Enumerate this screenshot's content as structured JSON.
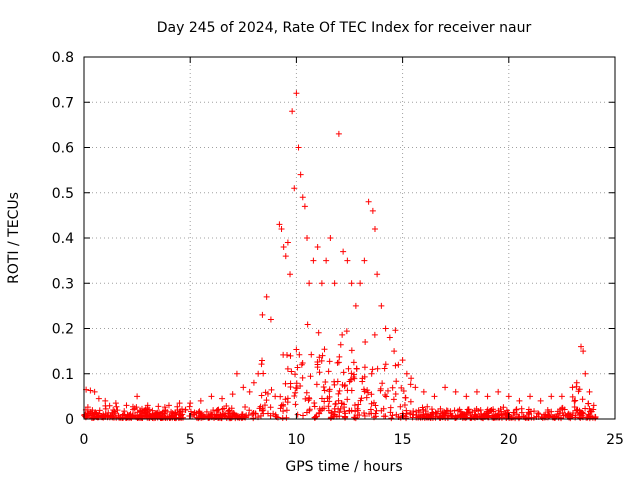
{
  "chart_data": {
    "type": "scatter",
    "title": "Day 245 of 2024, Rate Of TEC Index for receiver naur",
    "xlabel": "GPS time / hours",
    "ylabel": "ROTI / TECUs",
    "xlim": [
      0,
      25
    ],
    "ylim": [
      0,
      0.8
    ],
    "xticks": [
      0,
      5,
      10,
      15,
      20,
      25
    ],
    "yticks": [
      0,
      0.1,
      0.2,
      0.3,
      0.4,
      0.5,
      0.6,
      0.7,
      0.8
    ],
    "grid": true,
    "marker": "+",
    "color": "#ff0000",
    "series": [
      {
        "name": "ROTI",
        "x": [
          0.1,
          0.3,
          0.5,
          0.7,
          1.0,
          1.5,
          2.0,
          2.5,
          3.0,
          3.5,
          4.0,
          4.5,
          5.0,
          5.5,
          6.0,
          6.5,
          7.0,
          7.2,
          7.5,
          7.8,
          8.0,
          8.2,
          8.4,
          8.6,
          8.8,
          9.0,
          9.2,
          9.3,
          9.4,
          9.5,
          9.6,
          9.7,
          9.8,
          9.9,
          10.0,
          10.1,
          10.2,
          10.3,
          10.4,
          10.5,
          10.6,
          10.8,
          11.0,
          11.2,
          11.4,
          11.6,
          11.8,
          12.0,
          12.2,
          12.4,
          12.6,
          12.8,
          13.0,
          13.2,
          13.4,
          13.6,
          13.7,
          13.8,
          14.0,
          14.2,
          14.4,
          14.6,
          14.8,
          15.0,
          15.2,
          15.4,
          15.6,
          16.0,
          16.5,
          17.0,
          17.5,
          18.0,
          18.5,
          19.0,
          19.5,
          20.0,
          20.5,
          21.0,
          21.5,
          22.0,
          22.5,
          23.0,
          23.2,
          23.4,
          23.5,
          23.6,
          23.8,
          24.0
        ],
        "y": [
          0.065,
          0.063,
          0.06,
          0.045,
          0.04,
          0.035,
          0.03,
          0.05,
          0.03,
          0.028,
          0.03,
          0.035,
          0.035,
          0.04,
          0.05,
          0.045,
          0.055,
          0.1,
          0.07,
          0.06,
          0.08,
          0.1,
          0.23,
          0.27,
          0.22,
          0.05,
          0.43,
          0.42,
          0.38,
          0.36,
          0.39,
          0.32,
          0.68,
          0.51,
          0.72,
          0.6,
          0.54,
          0.49,
          0.47,
          0.4,
          0.3,
          0.35,
          0.38,
          0.3,
          0.35,
          0.4,
          0.3,
          0.63,
          0.37,
          0.35,
          0.3,
          0.25,
          0.3,
          0.35,
          0.48,
          0.46,
          0.42,
          0.32,
          0.25,
          0.2,
          0.18,
          0.15,
          0.12,
          0.13,
          0.1,
          0.09,
          0.07,
          0.06,
          0.05,
          0.07,
          0.06,
          0.05,
          0.06,
          0.05,
          0.06,
          0.05,
          0.04,
          0.05,
          0.04,
          0.05,
          0.05,
          0.07,
          0.08,
          0.16,
          0.15,
          0.1,
          0.06,
          0.03
        ]
      }
    ]
  }
}
